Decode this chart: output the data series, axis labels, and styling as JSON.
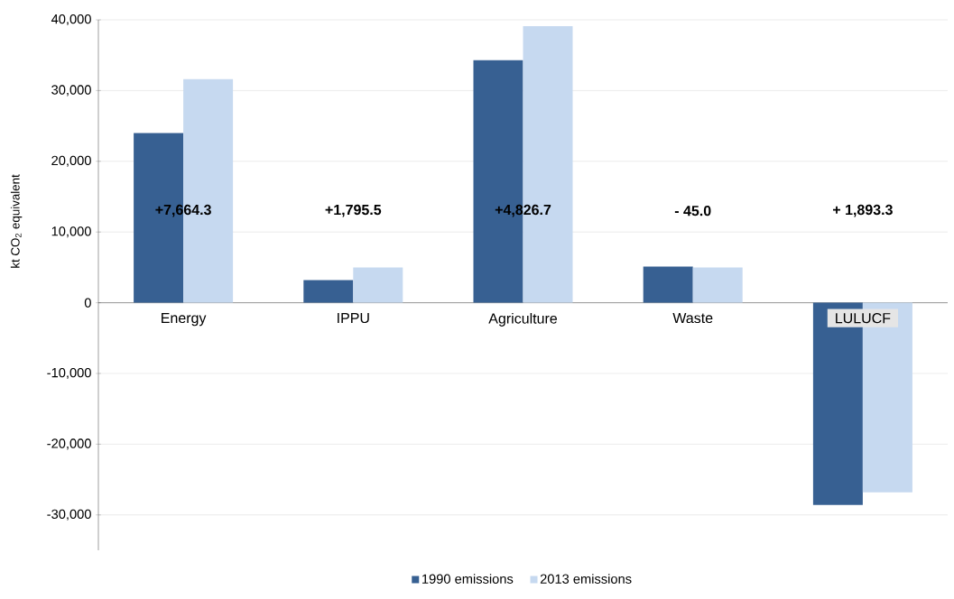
{
  "chart_data": {
    "type": "bar",
    "ylabel": "kt CO$_{2}$ equivalent",
    "categories": [
      "Energy",
      "IPPU",
      "Agriculture",
      "Waste",
      "LULUCF"
    ],
    "series": [
      {
        "name": "1990 emissions",
        "color": "#376092",
        "values": [
          24000,
          3200,
          34300,
          5100,
          -28600
        ]
      },
      {
        "name": "2013 emissions",
        "color": "#c6d9f0",
        "values": [
          31600,
          5000,
          39100,
          5000,
          -26800
        ]
      }
    ],
    "ylim": [
      -35000,
      40000
    ],
    "yticks": [
      {
        "value": 40000,
        "label": "40,000"
      },
      {
        "value": 30000,
        "label": "30,000"
      },
      {
        "value": 20000,
        "label": "20,000"
      },
      {
        "value": 10000,
        "label": "10,000"
      },
      0,
      {
        "value": -10000,
        "label": "-10,000"
      },
      {
        "value": -20000,
        "label": "-20,000"
      },
      {
        "value": -30000,
        "label": "-30,000"
      }
    ],
    "grid": "y",
    "legend": "bottom",
    "annotations": [
      "+7,664.3",
      "+1,795.5",
      "+4,826.7",
      "- 45.0",
      "+ 1,893.3"
    ]
  }
}
